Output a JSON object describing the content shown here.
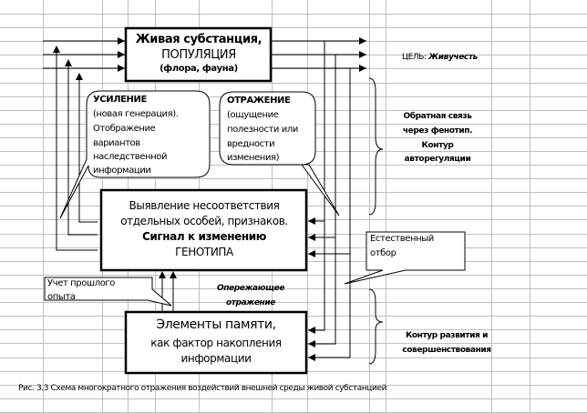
{
  "boxes": {
    "top": {
      "line1": "Живая субстанция,",
      "line2": "ПОПУЛЯЦИЯ",
      "line3": "(флора, фауна)"
    },
    "middle": {
      "line1": "Выявление несоответствия",
      "line2": "отдельных особей, признаков.",
      "line3": "Сигнал к изменению",
      "line4": "ГЕНОТИПА"
    },
    "bottom": {
      "line1": "Элементы памяти,",
      "line2": "как фактор накопления",
      "line3": "информации"
    }
  },
  "callouts": {
    "amplification": {
      "title": "УСИЛЕНИЕ",
      "lines": [
        "(новая генерация).",
        "Отображение",
        "вариантов",
        "наследственной",
        "информации"
      ]
    },
    "reflection": {
      "title": "ОТРАЖЕНИЕ",
      "lines": [
        "(ощущение",
        "полезности или",
        "вредности",
        "изменения)"
      ]
    },
    "selection": {
      "lines": [
        "Естественный",
        "отбор"
      ]
    },
    "experience": {
      "lines": [
        "Учет прошлого",
        "опыта"
      ]
    }
  },
  "labels": {
    "goal_prefix": "ЦЕЛЬ:",
    "goal_value": "Живучесть",
    "feedback": [
      "Обратная связь",
      "через фенотип.",
      "Контур",
      "авторегуляции"
    ],
    "anticipatory": [
      "Опережающее",
      "отражение"
    ],
    "development": [
      "Контур развития и",
      "совершенствования"
    ]
  },
  "caption": "Рис. 3.3  Схема многократного отражения воздействий внешней среды живой субстанцией"
}
